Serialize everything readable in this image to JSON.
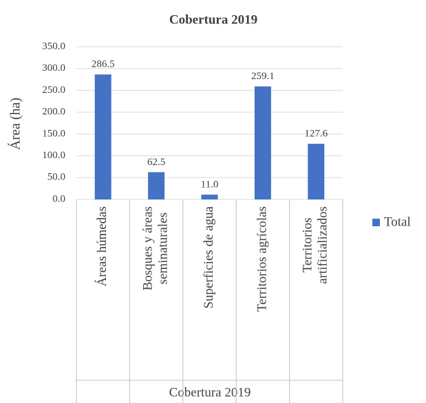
{
  "chart_data": {
    "type": "bar",
    "title": "Cobertura 2019",
    "ylabel": "Área (ha)",
    "xlabel": "Cobertura 2019",
    "categories": [
      [
        "Áreas húmedas"
      ],
      [
        "Bosques y áreas",
        "seminaturales"
      ],
      [
        "Superficies de agua"
      ],
      [
        "Territorios agrícolas"
      ],
      [
        "Territorios",
        "artificializados"
      ]
    ],
    "series": [
      {
        "name": "Total",
        "color": "#4472c4",
        "values": [
          286.5,
          62.5,
          11.0,
          259.1,
          127.6
        ],
        "value_labels": [
          "286.5",
          "62.5",
          "11.0",
          "259.1",
          "127.6"
        ]
      }
    ],
    "ylim": [
      0,
      350
    ],
    "yticks": [
      {
        "value": 0,
        "label": "0.0"
      },
      {
        "value": 50,
        "label": "50.0"
      },
      {
        "value": 100,
        "label": "100.0"
      },
      {
        "value": 150,
        "label": "150.0"
      },
      {
        "value": 200,
        "label": "200.0"
      },
      {
        "value": 250,
        "label": "250.0"
      },
      {
        "value": 300,
        "label": "300.0"
      },
      {
        "value": 350,
        "label": "350.0"
      }
    ],
    "grid": true,
    "legend": "right"
  }
}
